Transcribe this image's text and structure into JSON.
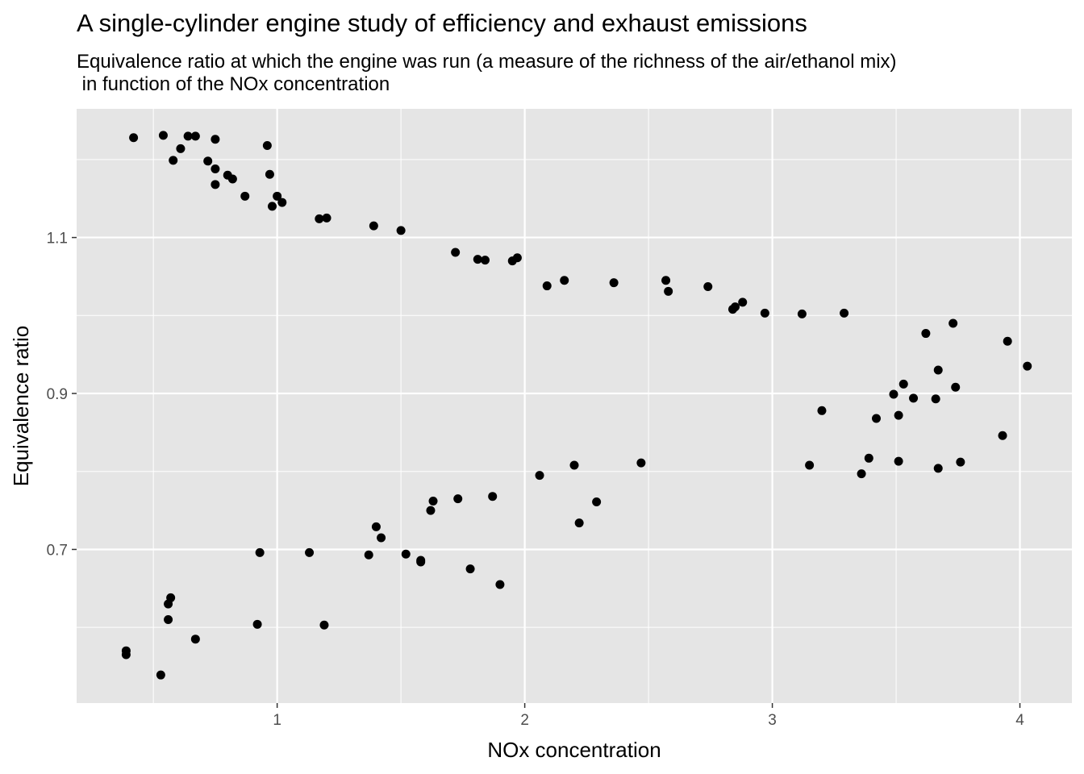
{
  "chart_data": {
    "type": "scatter",
    "title": "A single-cylinder engine study of efficiency and exhaust emissions",
    "subtitle_lines": [
      "Equivalence ratio at which the engine was run (a measure of the richness of the air/ethanol mix)",
      " in function of the NOx concentration"
    ],
    "xlabel": "NOx concentration",
    "ylabel": "Equivalence ratio",
    "xlim": [
      0.19,
      4.21
    ],
    "ylim": [
      0.503,
      1.265
    ],
    "x_ticks": [
      1,
      2,
      3,
      4
    ],
    "x_tick_labels": [
      "1",
      "2",
      "3",
      "4"
    ],
    "y_ticks": [
      0.7,
      0.9,
      1.1
    ],
    "y_tick_labels": [
      "0.7",
      "0.9",
      "1.1"
    ],
    "grid": true,
    "point_color": "#000000",
    "panel_background": "#e5e5e5",
    "grid_color": "#ffffff",
    "points": [
      [
        0.42,
        1.228
      ],
      [
        0.54,
        1.231
      ],
      [
        0.61,
        1.214
      ],
      [
        0.58,
        1.199
      ],
      [
        0.64,
        1.23
      ],
      [
        0.67,
        1.23
      ],
      [
        0.75,
        1.226
      ],
      [
        0.96,
        1.218
      ],
      [
        0.72,
        1.198
      ],
      [
        0.75,
        1.188
      ],
      [
        0.8,
        1.18
      ],
      [
        0.82,
        1.175
      ],
      [
        0.75,
        1.168
      ],
      [
        0.97,
        1.181
      ],
      [
        0.87,
        1.153
      ],
      [
        1.0,
        1.153
      ],
      [
        1.02,
        1.145
      ],
      [
        0.98,
        1.14
      ],
      [
        1.17,
        1.124
      ],
      [
        1.2,
        1.125
      ],
      [
        1.39,
        1.115
      ],
      [
        1.5,
        1.109
      ],
      [
        1.72,
        1.081
      ],
      [
        1.81,
        1.072
      ],
      [
        1.84,
        1.071
      ],
      [
        1.95,
        1.07
      ],
      [
        1.97,
        1.074
      ],
      [
        2.09,
        1.038
      ],
      [
        2.16,
        1.045
      ],
      [
        2.36,
        1.042
      ],
      [
        2.57,
        1.045
      ],
      [
        2.58,
        1.031
      ],
      [
        2.74,
        1.037
      ],
      [
        2.84,
        1.008
      ],
      [
        2.85,
        1.011
      ],
      [
        2.88,
        1.017
      ],
      [
        2.97,
        1.003
      ],
      [
        3.12,
        1.002
      ],
      [
        3.29,
        1.003
      ],
      [
        3.62,
        0.977
      ],
      [
        3.73,
        0.99
      ],
      [
        3.95,
        0.967
      ],
      [
        3.67,
        0.93
      ],
      [
        4.03,
        0.935
      ],
      [
        3.53,
        0.912
      ],
      [
        3.74,
        0.908
      ],
      [
        3.49,
        0.899
      ],
      [
        3.57,
        0.894
      ],
      [
        3.66,
        0.893
      ],
      [
        3.2,
        0.878
      ],
      [
        3.42,
        0.868
      ],
      [
        3.51,
        0.872
      ],
      [
        3.93,
        0.846
      ],
      [
        3.15,
        0.808
      ],
      [
        3.39,
        0.817
      ],
      [
        3.36,
        0.797
      ],
      [
        3.51,
        0.813
      ],
      [
        3.67,
        0.804
      ],
      [
        3.76,
        0.812
      ],
      [
        2.47,
        0.811
      ],
      [
        2.2,
        0.808
      ],
      [
        2.06,
        0.795
      ],
      [
        1.87,
        0.768
      ],
      [
        1.73,
        0.765
      ],
      [
        1.63,
        0.762
      ],
      [
        1.62,
        0.75
      ],
      [
        2.29,
        0.761
      ],
      [
        2.22,
        0.734
      ],
      [
        1.4,
        0.729
      ],
      [
        1.42,
        0.715
      ],
      [
        0.93,
        0.696
      ],
      [
        1.13,
        0.696
      ],
      [
        1.37,
        0.693
      ],
      [
        1.52,
        0.694
      ],
      [
        1.58,
        0.684
      ],
      [
        1.58,
        0.686
      ],
      [
        1.78,
        0.675
      ],
      [
        1.9,
        0.655
      ],
      [
        0.57,
        0.638
      ],
      [
        0.56,
        0.63
      ],
      [
        0.56,
        0.61
      ],
      [
        0.92,
        0.604
      ],
      [
        1.19,
        0.603
      ],
      [
        0.67,
        0.585
      ],
      [
        0.39,
        0.57
      ],
      [
        0.39,
        0.565
      ],
      [
        0.53,
        0.539
      ]
    ]
  }
}
